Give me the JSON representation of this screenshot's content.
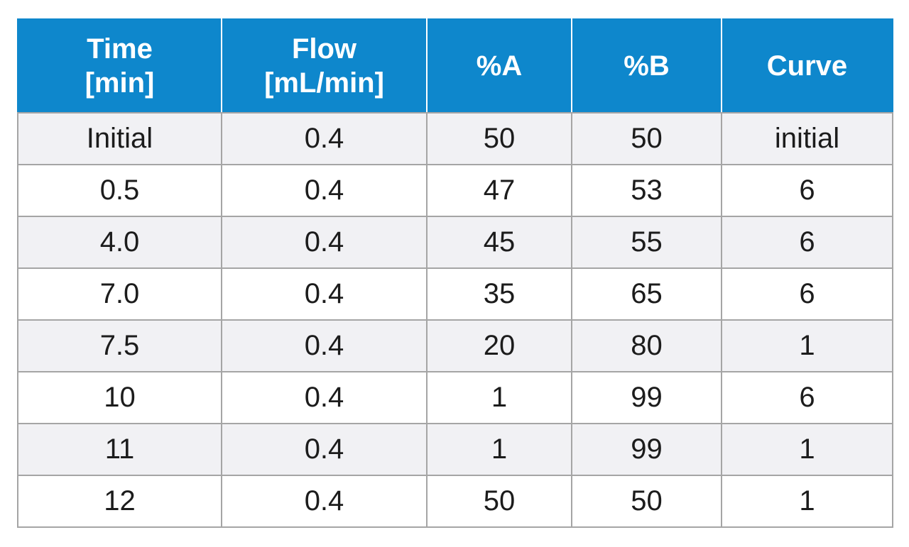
{
  "table": {
    "header": [
      [
        "Time",
        "[min]"
      ],
      [
        "Flow",
        "[mL/min]"
      ],
      [
        "%A"
      ],
      [
        "%B"
      ],
      [
        "Curve"
      ]
    ],
    "rows": [
      [
        "Initial",
        "0.4",
        "50",
        "50",
        "initial"
      ],
      [
        "0.5",
        "0.4",
        "47",
        "53",
        "6"
      ],
      [
        "4.0",
        "0.4",
        "45",
        "55",
        "6"
      ],
      [
        "7.0",
        "0.4",
        "35",
        "65",
        "6"
      ],
      [
        "7.5",
        "0.4",
        "20",
        "80",
        "1"
      ],
      [
        "10",
        "0.4",
        "1",
        "99",
        "6"
      ],
      [
        "11",
        "0.4",
        "1",
        "99",
        "1"
      ],
      [
        "12",
        "0.4",
        "50",
        "50",
        "1"
      ]
    ]
  },
  "colors": {
    "header_bg": "#0e87cc",
    "header_text": "#ffffff",
    "row_shaded": "#f1f1f4",
    "row_plain": "#ffffff",
    "grid_line": "#a5a5a5"
  }
}
